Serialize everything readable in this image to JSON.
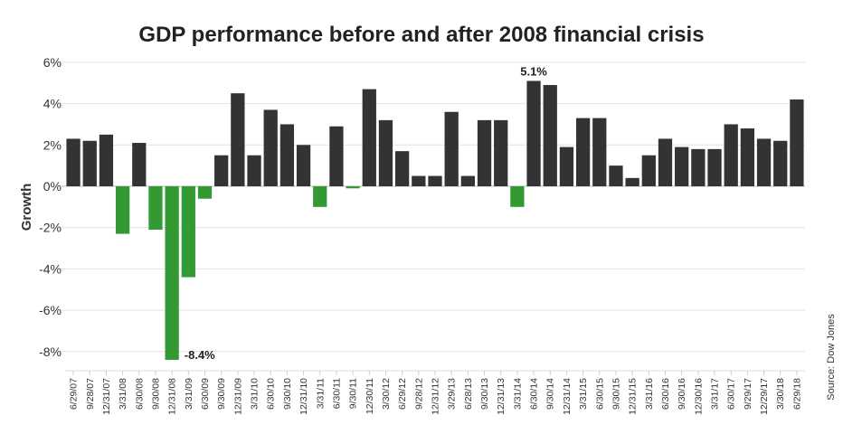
{
  "chart_data": {
    "type": "bar",
    "title": "GDP performance before and after 2008 financial crisis",
    "xlabel": "",
    "ylabel": "Growth",
    "ylim": [
      -9,
      6
    ],
    "yticks": [
      6,
      4,
      2,
      0,
      -2,
      -4,
      -6,
      -8
    ],
    "ytick_labels": [
      "6%",
      "4%",
      "2%",
      "0%",
      "-2%",
      "-4%",
      "-6%",
      "-8%"
    ],
    "grid": true,
    "colors": {
      "positive": "#333333",
      "negative": "#339933"
    },
    "source": "Source: Dow Jones",
    "categories": [
      "6/29/07",
      "9/28/07",
      "12/31/07",
      "3/31/08",
      "6/30/08",
      "9/30/08",
      "12/31/08",
      "3/31/09",
      "6/30/09",
      "9/30/09",
      "12/31/09",
      "3/31/10",
      "6/30/10",
      "9/30/10",
      "12/31/10",
      "3/31/11",
      "6/30/11",
      "9/30/11",
      "12/30/11",
      "3/30/12",
      "6/29/12",
      "9/28/12",
      "12/31/12",
      "3/29/13",
      "6/28/13",
      "9/30/13",
      "12/31/13",
      "3/31/14",
      "6/30/14",
      "9/30/14",
      "12/31/14",
      "3/31/15",
      "6/30/15",
      "9/30/15",
      "12/31/15",
      "3/31/16",
      "6/30/16",
      "9/30/16",
      "12/30/16",
      "3/31/17",
      "6/30/17",
      "9/29/17",
      "12/29/17",
      "3/30/18",
      "6/29/18"
    ],
    "values": [
      2.3,
      2.2,
      2.5,
      -2.3,
      2.1,
      -2.1,
      -8.4,
      -4.4,
      -0.6,
      1.5,
      4.5,
      1.5,
      3.7,
      3.0,
      2.0,
      -1.0,
      2.9,
      -0.1,
      4.7,
      3.2,
      1.7,
      0.5,
      0.5,
      3.6,
      0.5,
      3.2,
      3.2,
      -1.0,
      5.1,
      4.9,
      1.9,
      3.3,
      3.3,
      1.0,
      0.4,
      1.5,
      2.3,
      1.9,
      1.8,
      1.8,
      3.0,
      2.8,
      2.3,
      2.2,
      4.2
    ],
    "data_labels": [
      {
        "category": "12/31/08",
        "value": -8.4,
        "text": "-8.4%"
      },
      {
        "category": "6/30/14",
        "value": 5.1,
        "text": "5.1%"
      }
    ]
  }
}
